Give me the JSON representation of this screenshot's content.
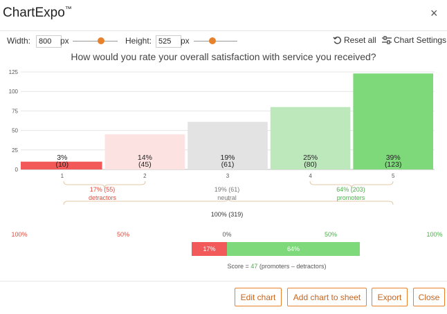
{
  "app": {
    "title": "ChartExpo",
    "trademark": "™",
    "close_glyph": "×"
  },
  "controls": {
    "width_label": "Width:",
    "width_value": "800",
    "width_unit": "px",
    "height_label": "Height:",
    "height_value": "525",
    "height_unit": "px",
    "reset_label": "Reset all",
    "settings_label": "Chart Settings"
  },
  "chart_data": {
    "type": "bar",
    "title": "How would you rate your overall satisfaction with service you received?",
    "categories": [
      "1",
      "2",
      "3",
      "4",
      "5"
    ],
    "values": [
      10,
      45,
      61,
      80,
      123
    ],
    "percent_labels": [
      "3%",
      "14%",
      "19%",
      "25%",
      "39%"
    ],
    "count_labels": [
      "(10)",
      "(45)",
      "(61)",
      "(80)",
      "(123)"
    ],
    "colors": [
      "#f25a5a",
      "#fde2e2",
      "#e3e3e3",
      "#bde8bb",
      "#7ed97a"
    ],
    "ylim": [
      0,
      125
    ],
    "yticks": [
      "0",
      "25",
      "50",
      "75",
      "100",
      "125"
    ],
    "grid": true,
    "groups": [
      {
        "pct": "17% (55)",
        "name": "detractors",
        "color": "#e04b3c"
      },
      {
        "pct": "19% (61)",
        "name": "neutral",
        "color": "#777777"
      },
      {
        "pct": "64% (203)",
        "name": "promoters",
        "color": "#4cae4c"
      }
    ],
    "total_label": "100% (319)",
    "scale_labels": {
      "left_100": "100%",
      "left_50": "50%",
      "zero": "0%",
      "right_50": "50%",
      "right_100": "100%"
    },
    "score_bar": {
      "detractors_pct": 17,
      "promoters_pct": 64,
      "detractors_label": "17%",
      "promoters_label": "64%"
    },
    "score": {
      "prefix": "Score = ",
      "value": "47",
      "promoters": "(promoters",
      "minus": "–",
      "detractors": "detractors)"
    }
  },
  "buttons": {
    "edit": "Edit chart",
    "add": "Add chart to sheet",
    "export": "Export",
    "close": "Close"
  },
  "colors": {
    "accent": "#e8812c",
    "detractor": "#f25a5a",
    "promoter": "#7ed97a"
  }
}
